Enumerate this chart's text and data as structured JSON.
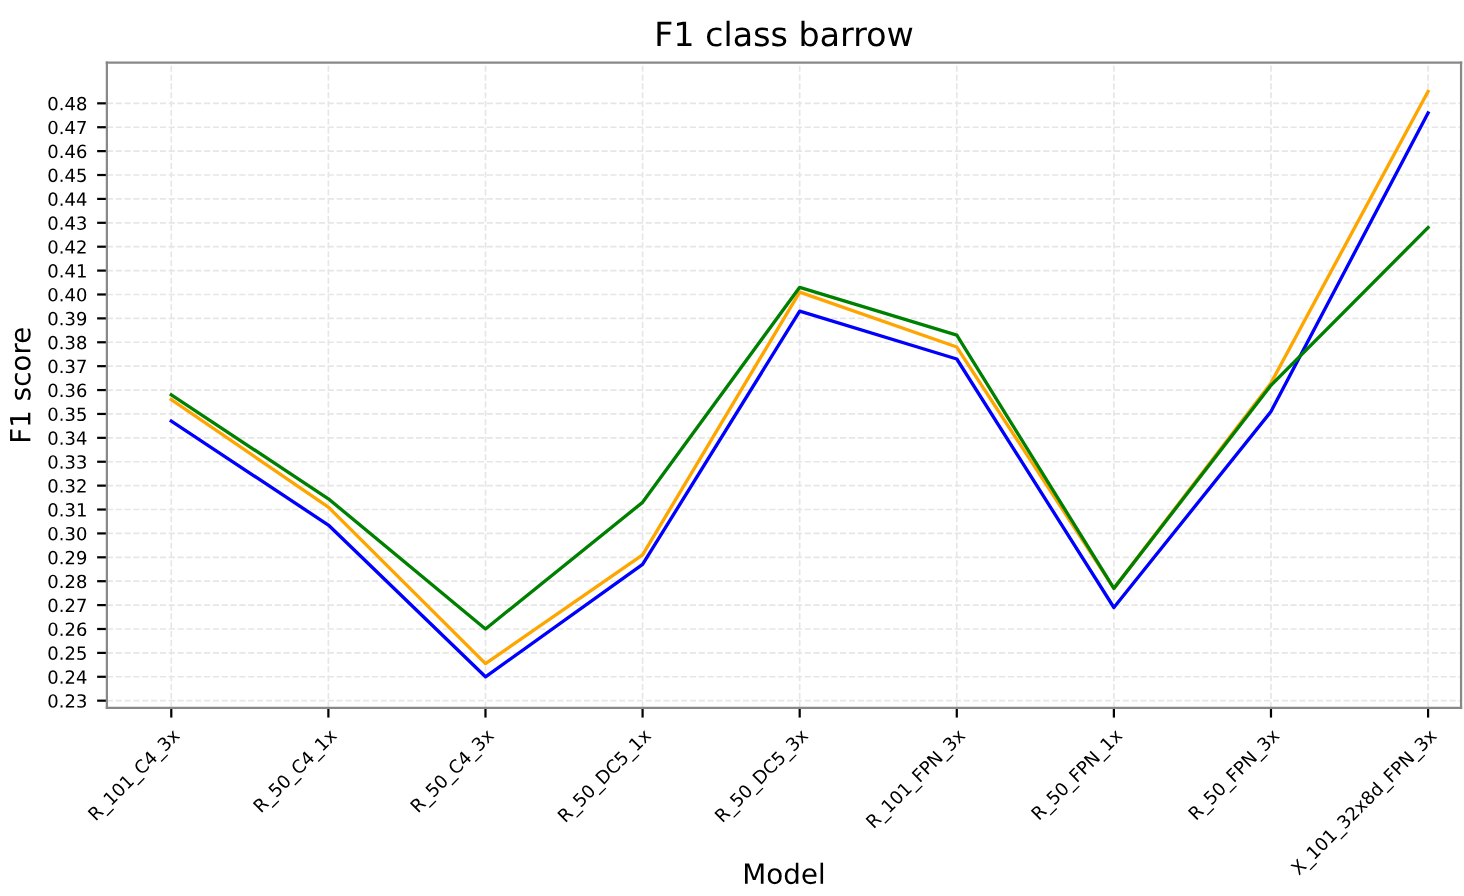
{
  "chart_data": {
    "type": "line",
    "title": "F1 class barrow",
    "xlabel": "Model",
    "ylabel": "F1 score",
    "categories": [
      "R_101_C4_3x",
      "R_50_C4_1x",
      "R_50_C4_3x",
      "R_50_DC5_1x",
      "R_50_DC5_3x",
      "R_101_FPN_3x",
      "R_50_FPN_1x",
      "R_50_FPN_3x",
      "X_101_32x8d_FPN_3x"
    ],
    "series": [
      {
        "color": "#0000ff",
        "values": [
          0.347,
          0.3035,
          0.24,
          0.287,
          0.393,
          0.373,
          0.269,
          0.351,
          0.476
        ]
      },
      {
        "color": "#ffa500",
        "values": [
          0.356,
          0.311,
          0.2455,
          0.291,
          0.401,
          0.378,
          0.277,
          0.363,
          0.485
        ]
      },
      {
        "color": "#008000",
        "values": [
          0.358,
          0.3145,
          0.26,
          0.313,
          0.403,
          0.383,
          0.277,
          0.362,
          0.428
        ]
      }
    ],
    "ylim": [
      0.227,
      0.497
    ],
    "yticks": [
      0.23,
      0.24,
      0.25,
      0.26,
      0.27,
      0.28,
      0.29,
      {
        "value": 0.3,
        "label": "0.30"
      },
      0.31,
      0.32,
      0.33,
      0.34,
      0.35,
      0.36,
      0.37,
      0.38,
      0.39,
      {
        "value": 0.4,
        "label": "0.40"
      },
      0.41,
      0.42,
      0.43,
      0.44,
      0.45,
      0.46,
      0.47,
      0.48
    ],
    "grid": true,
    "marker": "none",
    "line_style": "solid"
  }
}
